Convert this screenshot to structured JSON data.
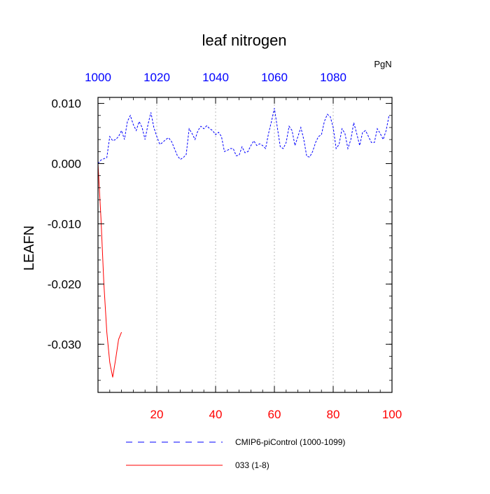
{
  "chart_data": {
    "type": "line",
    "title": "leaf nitrogen",
    "units_label": "PgN",
    "ylabel": "LEAFN",
    "xlabel": "",
    "ylim": [
      -0.038,
      0.011
    ],
    "yticks": [
      {
        "value": 0.01,
        "label": "0.010"
      },
      {
        "value": 0.0,
        "label": "0.000"
      },
      {
        "value": -0.01,
        "label": "-0.010"
      },
      {
        "value": -0.02,
        "label": "-0.020"
      },
      {
        "value": -0.03,
        "label": "-0.030"
      }
    ],
    "bottom_axis": {
      "range": [
        0,
        100
      ],
      "ticks": [
        20,
        40,
        60,
        80,
        100
      ],
      "tick_labels": [
        "20",
        "40",
        "60",
        "80",
        "100"
      ],
      "color": "#ff0000"
    },
    "top_axis": {
      "range": [
        1000,
        1100
      ],
      "ticks": [
        1000,
        1020,
        1040,
        1060,
        1080
      ],
      "tick_labels": [
        "1000",
        "1020",
        "1040",
        "1060",
        "1080"
      ],
      "color": "#0000ff"
    },
    "grid": "vertical dashed at bottom-axis ticks",
    "legend_position": "bottom",
    "series": [
      {
        "name": "CMIP6-piControl (1000-1099)",
        "axis": "top",
        "color": "#0000ff",
        "dash": "dashed",
        "x": [
          1000,
          1001,
          1002,
          1003,
          1004,
          1005,
          1006,
          1007,
          1008,
          1009,
          1010,
          1011,
          1012,
          1013,
          1014,
          1015,
          1016,
          1017,
          1018,
          1019,
          1020,
          1021,
          1022,
          1023,
          1024,
          1025,
          1026,
          1027,
          1028,
          1029,
          1030,
          1031,
          1032,
          1033,
          1034,
          1035,
          1036,
          1037,
          1038,
          1039,
          1040,
          1041,
          1042,
          1043,
          1044,
          1045,
          1046,
          1047,
          1048,
          1049,
          1050,
          1051,
          1052,
          1053,
          1054,
          1055,
          1056,
          1057,
          1058,
          1059,
          1060,
          1061,
          1062,
          1063,
          1064,
          1065,
          1066,
          1067,
          1068,
          1069,
          1070,
          1071,
          1072,
          1073,
          1074,
          1075,
          1076,
          1077,
          1078,
          1079,
          1080,
          1081,
          1082,
          1083,
          1084,
          1085,
          1086,
          1087,
          1088,
          1089,
          1090,
          1091,
          1092,
          1093,
          1094,
          1095,
          1096,
          1097,
          1098,
          1099
        ],
        "values": [
          0.0,
          0.0006,
          0.0008,
          0.001,
          0.0045,
          0.0038,
          0.004,
          0.0045,
          0.0055,
          0.004,
          0.007,
          0.008,
          0.0065,
          0.0055,
          0.007,
          0.006,
          0.004,
          0.0065,
          0.0085,
          0.006,
          0.0045,
          0.0032,
          0.0035,
          0.004,
          0.0043,
          0.0037,
          0.0025,
          0.0013,
          0.0007,
          0.001,
          0.0015,
          0.0058,
          0.005,
          0.004,
          0.0055,
          0.0062,
          0.0058,
          0.0063,
          0.0058,
          0.0055,
          0.0048,
          0.0052,
          0.0045,
          0.002,
          0.0022,
          0.0025,
          0.0025,
          0.0013,
          0.0014,
          0.0028,
          0.0018,
          0.002,
          0.003,
          0.0038,
          0.003,
          0.0033,
          0.003,
          0.0025,
          0.005,
          0.007,
          0.0092,
          0.006,
          0.0028,
          0.0025,
          0.0035,
          0.0062,
          0.0055,
          0.003,
          0.0045,
          0.006,
          0.004,
          0.0012,
          0.0011,
          0.002,
          0.0035,
          0.0045,
          0.0048,
          0.007,
          0.0082,
          0.0078,
          0.006,
          0.0025,
          0.0032,
          0.0058,
          0.005,
          0.0025,
          0.004,
          0.0068,
          0.005,
          0.003,
          0.0052,
          0.0055,
          0.0045,
          0.0035,
          0.0035,
          0.0058,
          0.005,
          0.004,
          0.0055,
          0.008
        ]
      },
      {
        "name": "033 (1-8)",
        "axis": "bottom",
        "color": "#ff0000",
        "dash": "solid",
        "x": [
          0,
          1,
          2,
          3,
          4,
          5,
          6,
          7,
          8
        ],
        "values": [
          0.0,
          -0.009,
          -0.02,
          -0.028,
          -0.033,
          -0.0355,
          -0.0325,
          -0.0292,
          -0.028
        ]
      }
    ]
  }
}
